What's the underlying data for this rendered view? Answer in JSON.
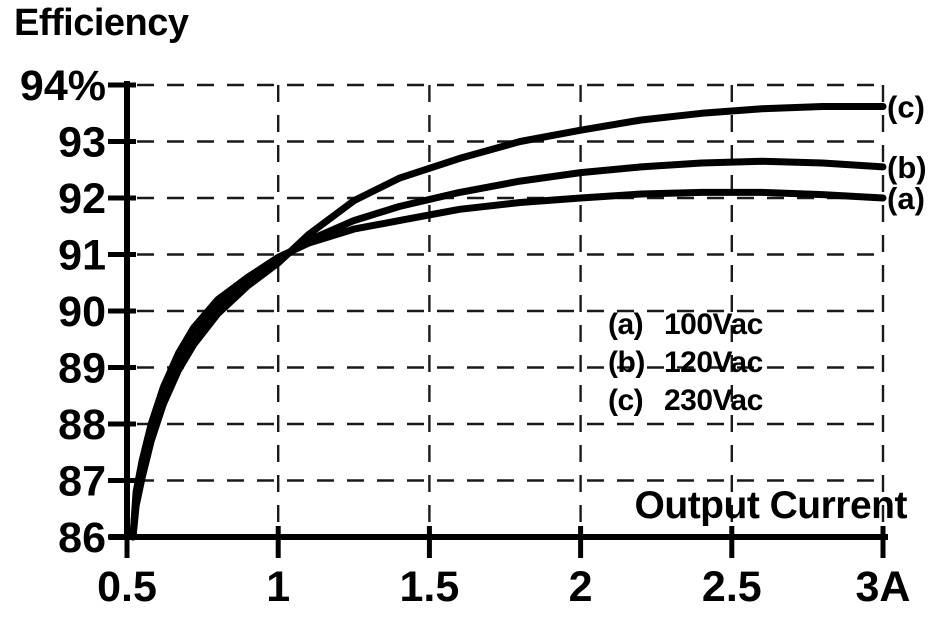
{
  "page": {
    "background_color": "#ffffff",
    "ink_color": "#000000",
    "grid_color": "#1a1a1a"
  },
  "chart_data": {
    "type": "line",
    "title": "Efficiency",
    "xlabel": "Output Current",
    "ylabel": "Efficiency (%)",
    "x_unit": "A",
    "xlim": [
      0.5,
      3
    ],
    "ylim": [
      86,
      94
    ],
    "grid": {
      "style": "dashed",
      "x_lines": [
        1,
        1.5,
        2,
        2.5,
        3
      ],
      "y_lines": [
        87,
        88,
        89,
        90,
        91,
        92,
        93,
        94
      ]
    },
    "x_ticks": [
      {
        "value": 0.5,
        "label": "0.5"
      },
      {
        "value": 1,
        "label": "1"
      },
      {
        "value": 1.5,
        "label": "1.5"
      },
      {
        "value": 2,
        "label": "2"
      },
      {
        "value": 2.5,
        "label": "2.5"
      },
      {
        "value": 3,
        "label": "3A"
      }
    ],
    "y_ticks": [
      {
        "value": 94,
        "label": "94%"
      },
      {
        "value": 93,
        "label": "93"
      },
      {
        "value": 92,
        "label": "92"
      },
      {
        "value": 91,
        "label": "91"
      },
      {
        "value": 90,
        "label": "90"
      },
      {
        "value": 89,
        "label": "89"
      },
      {
        "value": 88,
        "label": "88"
      },
      {
        "value": 87,
        "label": "87"
      },
      {
        "value": 86,
        "label": "86"
      }
    ],
    "legend": [
      {
        "key": "(a)",
        "label": "100Vac"
      },
      {
        "key": "(b)",
        "label": "120Vac"
      },
      {
        "key": "(c)",
        "label": "230Vac"
      }
    ],
    "series": [
      {
        "name": "a",
        "curve_label": "(a)",
        "voltage": "100Vac",
        "color": "#000000",
        "points": [
          [
            0.52,
            86.0
          ],
          [
            0.53,
            86.8
          ],
          [
            0.55,
            87.35
          ],
          [
            0.58,
            88.0
          ],
          [
            0.62,
            88.65
          ],
          [
            0.67,
            89.25
          ],
          [
            0.72,
            89.7
          ],
          [
            0.8,
            90.2
          ],
          [
            0.9,
            90.6
          ],
          [
            1.0,
            90.95
          ],
          [
            1.1,
            91.2
          ],
          [
            1.25,
            91.45
          ],
          [
            1.4,
            91.6
          ],
          [
            1.6,
            91.8
          ],
          [
            1.8,
            91.92
          ],
          [
            2.0,
            92.0
          ],
          [
            2.2,
            92.07
          ],
          [
            2.4,
            92.1
          ],
          [
            2.6,
            92.1
          ],
          [
            2.8,
            92.06
          ],
          [
            3.0,
            92.0
          ]
        ]
      },
      {
        "name": "b",
        "curve_label": "(b)",
        "voltage": "120Vac",
        "color": "#000000",
        "points": [
          [
            0.52,
            86.0
          ],
          [
            0.53,
            86.7
          ],
          [
            0.55,
            87.25
          ],
          [
            0.58,
            87.9
          ],
          [
            0.62,
            88.55
          ],
          [
            0.67,
            89.15
          ],
          [
            0.72,
            89.6
          ],
          [
            0.8,
            90.1
          ],
          [
            0.9,
            90.55
          ],
          [
            1.0,
            90.9
          ],
          [
            1.1,
            91.25
          ],
          [
            1.25,
            91.6
          ],
          [
            1.4,
            91.85
          ],
          [
            1.6,
            92.1
          ],
          [
            1.8,
            92.3
          ],
          [
            2.0,
            92.45
          ],
          [
            2.2,
            92.55
          ],
          [
            2.4,
            92.62
          ],
          [
            2.6,
            92.65
          ],
          [
            2.8,
            92.62
          ],
          [
            3.0,
            92.55
          ]
        ]
      },
      {
        "name": "c",
        "curve_label": "(c)",
        "voltage": "230Vac",
        "color": "#000000",
        "points": [
          [
            0.52,
            86.0
          ],
          [
            0.53,
            86.55
          ],
          [
            0.55,
            87.05
          ],
          [
            0.58,
            87.7
          ],
          [
            0.62,
            88.35
          ],
          [
            0.67,
            88.95
          ],
          [
            0.72,
            89.4
          ],
          [
            0.8,
            89.95
          ],
          [
            0.9,
            90.45
          ],
          [
            1.0,
            90.85
          ],
          [
            1.1,
            91.35
          ],
          [
            1.25,
            91.95
          ],
          [
            1.4,
            92.35
          ],
          [
            1.6,
            92.7
          ],
          [
            1.8,
            93.0
          ],
          [
            2.0,
            93.2
          ],
          [
            2.2,
            93.38
          ],
          [
            2.4,
            93.5
          ],
          [
            2.6,
            93.58
          ],
          [
            2.8,
            93.62
          ],
          [
            3.0,
            93.62
          ]
        ]
      }
    ]
  }
}
